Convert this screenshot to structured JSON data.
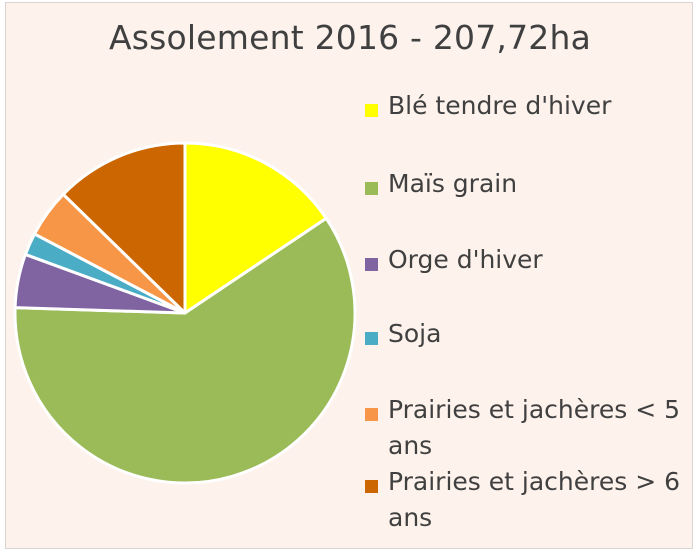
{
  "chart_data": {
    "type": "pie",
    "title": "Assolement 2016 - 207,72ha",
    "legend_position": "right",
    "series": [
      {
        "name": "Blé tendre d'hiver",
        "value": 15.6,
        "color": "#ffff00"
      },
      {
        "name": "Maïs grain",
        "value": 59.9,
        "color": "#9bbb59"
      },
      {
        "name": "Orge d'hiver",
        "value": 5.1,
        "color": "#8064a2"
      },
      {
        "name": "Soja",
        "value": 2.1,
        "color": "#4bacc6"
      },
      {
        "name": "Prairies et jachères < 5 ans",
        "value": 4.6,
        "color": "#f79646"
      },
      {
        "name": "Prairies et jachères > 6 ans",
        "value": 12.7,
        "color": "#cc6600"
      }
    ]
  }
}
